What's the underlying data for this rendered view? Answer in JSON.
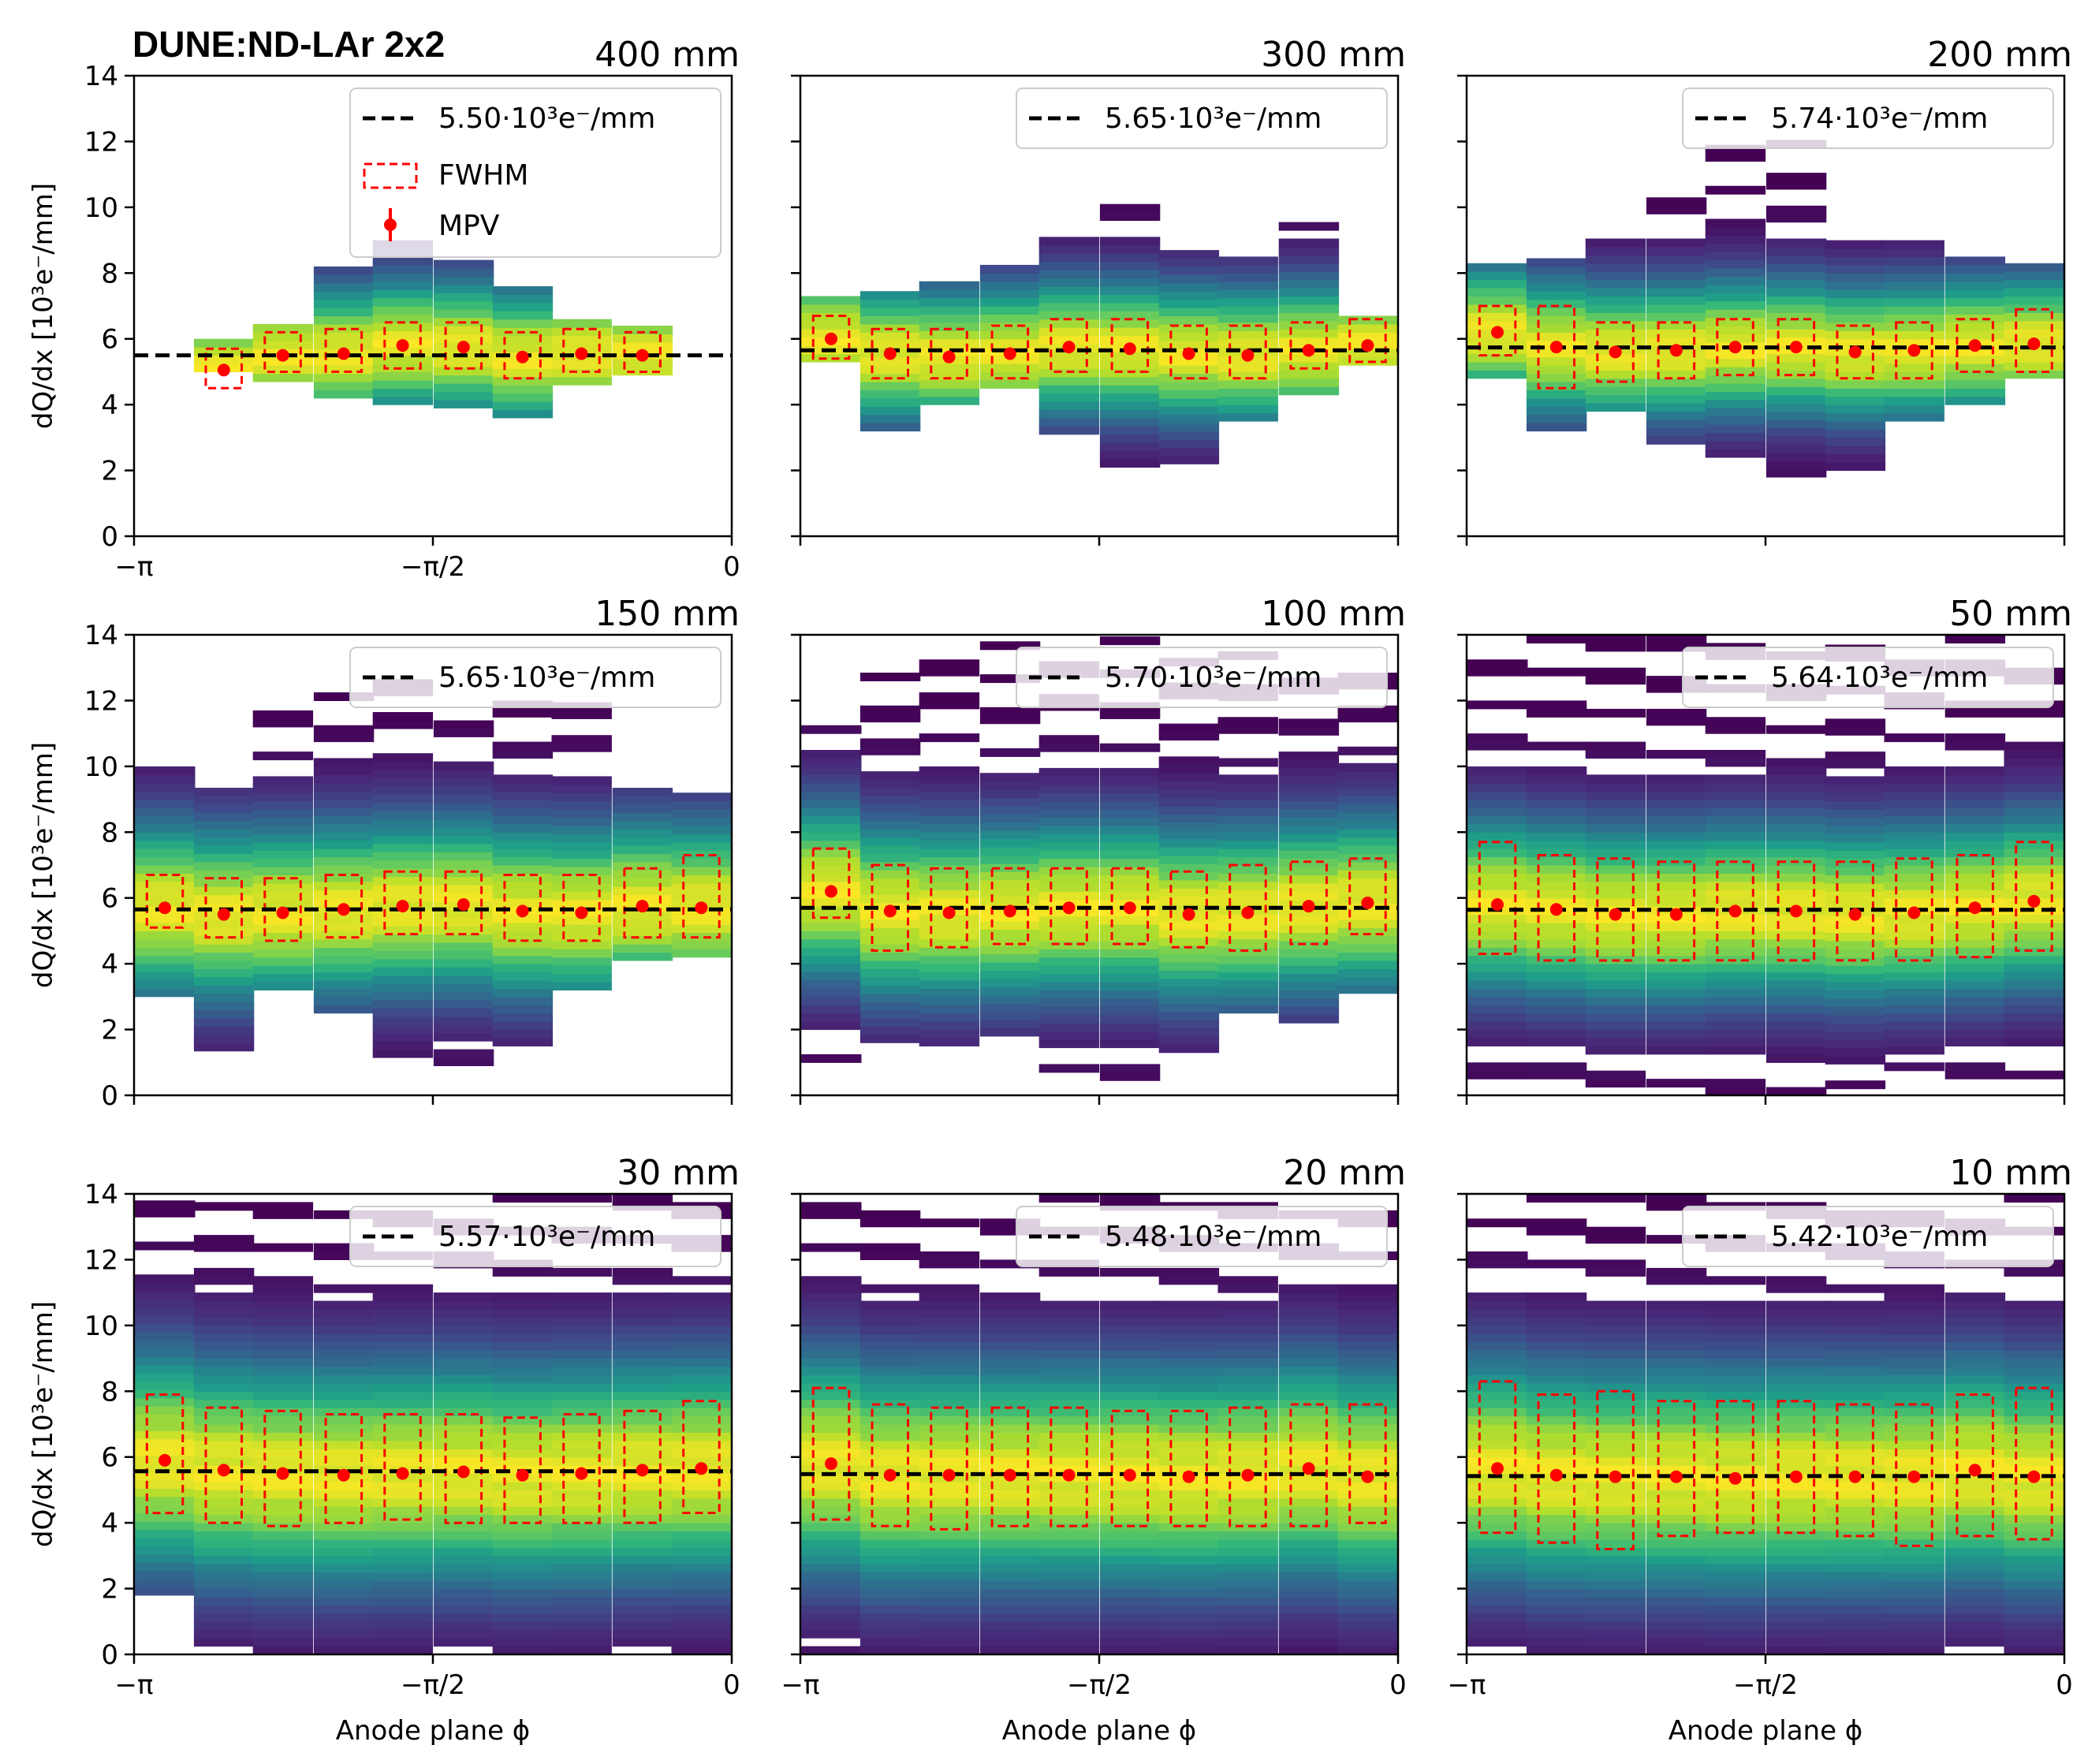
{
  "figure": {
    "experiment_label": "DUNE:ND-LAr 2x2",
    "x_axis_label": "Anode plane ϕ",
    "y_axis_label": "dQ/dx [10³e⁻/mm]",
    "legend": {
      "fit_suffix": "·10³e⁻/mm",
      "fwhm": "FWHM",
      "mpv": "MPV"
    }
  },
  "chart_data": [
    {
      "type": "heatmap",
      "title": "400 mm",
      "fit_value": "5.50",
      "xlim": [
        -3.1416,
        0
      ],
      "ylim": [
        0,
        14
      ],
      "xticks": [
        "−π",
        "−π/2",
        "0"
      ],
      "yticks": [
        "0",
        "2",
        "4",
        "6",
        "8",
        "10",
        "12",
        "14"
      ],
      "ylabel": "dQ/dx [10³e⁻/mm]",
      "xlabel": "",
      "fit_line": 5.5,
      "mpv": [
        5.05,
        5.5,
        5.55,
        5.8,
        5.75,
        5.45,
        5.55,
        5.5
      ],
      "fwhm_low": [
        4.5,
        5.0,
        5.0,
        5.1,
        5.1,
        4.8,
        5.0,
        5.0
      ],
      "fwhm_high": [
        5.7,
        6.2,
        6.3,
        6.5,
        6.5,
        6.2,
        6.3,
        6.2
      ],
      "phi_bins": [
        -2.67,
        -2.36,
        -2.04,
        -1.73,
        -1.41,
        -1.1,
        -0.79,
        -0.47
      ],
      "occupied_range": [
        [
          5.0,
          5.9
        ],
        [
          4.7,
          6.4
        ],
        [
          4.2,
          8.0
        ],
        [
          4.0,
          9.0
        ],
        [
          3.9,
          8.3
        ],
        [
          3.6,
          7.6
        ],
        [
          4.6,
          6.4
        ],
        [
          4.9,
          6.2
        ]
      ],
      "legend_loc": "top-right"
    },
    {
      "type": "heatmap",
      "title": "300 mm",
      "fit_value": "5.65",
      "xlim": [
        -3.1416,
        0
      ],
      "ylim": [
        0,
        14
      ],
      "xticks": [],
      "yticks": [],
      "ylabel": "",
      "xlabel": "",
      "fit_line": 5.65,
      "mpv": [
        6.0,
        5.55,
        5.45,
        5.55,
        5.75,
        5.7,
        5.55,
        5.5,
        5.65,
        5.8
      ],
      "fwhm_low": [
        5.4,
        4.8,
        4.8,
        4.8,
        5.0,
        5.0,
        4.8,
        4.8,
        5.1,
        5.3
      ],
      "fwhm_high": [
        6.7,
        6.3,
        6.3,
        6.4,
        6.6,
        6.6,
        6.4,
        6.4,
        6.5,
        6.6
      ],
      "phi_bins": [
        -2.98,
        -2.67,
        -2.36,
        -2.04,
        -1.73,
        -1.41,
        -1.1,
        -0.79,
        -0.47,
        -0.16
      ],
      "occupied_range": [
        [
          5.3,
          7.3
        ],
        [
          3.2,
          7.3
        ],
        [
          4.0,
          7.6
        ],
        [
          4.5,
          8.2
        ],
        [
          3.1,
          9.7
        ],
        [
          2.1,
          10.1
        ],
        [
          2.2,
          8.7
        ],
        [
          3.5,
          8.3
        ],
        [
          4.3,
          9.4
        ],
        [
          5.2,
          6.6
        ]
      ],
      "legend_loc": "top-right"
    },
    {
      "type": "heatmap",
      "title": "200 mm",
      "fit_value": "5.74",
      "xlim": [
        -3.1416,
        0
      ],
      "ylim": [
        0,
        14
      ],
      "xticks": [],
      "yticks": [],
      "ylabel": "",
      "xlabel": "",
      "fit_line": 5.74,
      "mpv": [
        6.2,
        5.75,
        5.6,
        5.65,
        5.75,
        5.75,
        5.6,
        5.65,
        5.8,
        5.85
      ],
      "fwhm_low": [
        5.5,
        4.5,
        4.7,
        4.8,
        4.9,
        4.9,
        4.8,
        4.8,
        5.0,
        5.0
      ],
      "fwhm_high": [
        7.0,
        7.0,
        6.5,
        6.5,
        6.6,
        6.6,
        6.4,
        6.5,
        6.6,
        6.9
      ],
      "phi_bins": [
        -2.98,
        -2.67,
        -2.36,
        -2.04,
        -1.73,
        -1.41,
        -1.1,
        -0.79,
        -0.47,
        -0.16
      ],
      "occupied_range": [
        [
          4.8,
          8.3
        ],
        [
          3.2,
          8.3
        ],
        [
          3.8,
          9.0
        ],
        [
          2.8,
          10.2
        ],
        [
          1.9,
          12.3
        ],
        [
          1.8,
          12.8
        ],
        [
          2.0,
          9.5
        ],
        [
          3.5,
          9.3
        ],
        [
          4.0,
          8.5
        ],
        [
          4.8,
          8.3
        ]
      ],
      "legend_loc": "top-right"
    },
    {
      "type": "heatmap",
      "title": "150 mm",
      "fit_value": "5.65",
      "xlim": [
        -3.1416,
        0
      ],
      "ylim": [
        0,
        14
      ],
      "xticks": [],
      "yticks": [
        "0",
        "2",
        "4",
        "6",
        "8",
        "10",
        "12",
        "14"
      ],
      "ylabel": "dQ/dx [10³e⁻/mm]",
      "xlabel": "",
      "fit_line": 5.65,
      "mpv": [
        5.7,
        5.5,
        5.55,
        5.65,
        5.75,
        5.8,
        5.6,
        5.55,
        5.75,
        5.7
      ],
      "fwhm_low": [
        5.1,
        4.8,
        4.7,
        4.8,
        4.9,
        4.9,
        4.7,
        4.7,
        4.8,
        4.8
      ],
      "fwhm_high": [
        6.7,
        6.6,
        6.6,
        6.7,
        6.8,
        6.8,
        6.7,
        6.7,
        6.9,
        7.3
      ],
      "phi_bins": [
        -2.98,
        -2.67,
        -2.36,
        -2.04,
        -1.73,
        -1.41,
        -1.1,
        -0.79,
        -0.47,
        -0.16
      ],
      "occupied_range": [
        [
          3.0,
          10.1
        ],
        [
          1.1,
          9.3
        ],
        [
          3.2,
          12.1
        ],
        [
          2.5,
          12.1
        ],
        [
          0.4,
          13.3
        ],
        [
          0.4,
          12.1
        ],
        [
          1.5,
          11.8
        ],
        [
          3.2,
          12.3
        ],
        [
          4.1,
          9.3
        ],
        [
          4.2,
          9.1
        ]
      ],
      "legend_loc": "top-right"
    },
    {
      "type": "heatmap",
      "title": "100 mm",
      "fit_value": "5.70",
      "xlim": [
        -3.1416,
        0
      ],
      "ylim": [
        0,
        14
      ],
      "xticks": [],
      "yticks": [],
      "ylabel": "",
      "xlabel": "",
      "fit_line": 5.7,
      "mpv": [
        6.2,
        5.6,
        5.55,
        5.6,
        5.7,
        5.7,
        5.5,
        5.55,
        5.75,
        5.85
      ],
      "fwhm_low": [
        5.4,
        4.4,
        4.5,
        4.6,
        4.6,
        4.6,
        4.5,
        4.4,
        4.6,
        4.9
      ],
      "fwhm_high": [
        7.5,
        7.0,
        6.9,
        6.9,
        6.9,
        6.9,
        6.8,
        7.0,
        7.1,
        7.2
      ],
      "phi_bins": [
        -2.98,
        -2.67,
        -2.36,
        -2.04,
        -1.73,
        -1.41,
        -1.1,
        -0.79,
        -0.47,
        -0.16
      ],
      "occupied_range": [
        [
          1.0,
          11.3
        ],
        [
          1.6,
          13.5
        ],
        [
          1.5,
          13.3
        ],
        [
          1.8,
          13.8
        ],
        [
          0.7,
          13.3
        ],
        [
          0.2,
          13.8
        ],
        [
          1.3,
          13.2
        ],
        [
          2.5,
          13.7
        ],
        [
          2.2,
          13.2
        ],
        [
          3.1,
          13.3
        ]
      ],
      "legend_loc": "top-right"
    },
    {
      "type": "heatmap",
      "title": "50 mm",
      "fit_value": "5.64",
      "xlim": [
        -3.1416,
        0
      ],
      "ylim": [
        0,
        14
      ],
      "xticks": [],
      "yticks": [],
      "ylabel": "",
      "xlabel": "",
      "fit_line": 5.64,
      "mpv": [
        5.8,
        5.65,
        5.5,
        5.5,
        5.6,
        5.6,
        5.5,
        5.55,
        5.7,
        5.9
      ],
      "fwhm_low": [
        4.3,
        4.1,
        4.1,
        4.1,
        4.1,
        4.1,
        4.1,
        4.1,
        4.2,
        4.4
      ],
      "fwhm_high": [
        7.7,
        7.3,
        7.2,
        7.1,
        7.1,
        7.1,
        7.1,
        7.2,
        7.3,
        7.7
      ],
      "phi_bins": [
        -2.98,
        -2.67,
        -2.36,
        -2.04,
        -1.73,
        -1.41,
        -1.1,
        -0.79,
        -0.47,
        -0.16
      ],
      "occupied_range": [
        [
          0.5,
          14.0
        ],
        [
          0.5,
          14.0
        ],
        [
          0.0,
          14.0
        ],
        [
          0.0,
          14.0
        ],
        [
          0.0,
          14.0
        ],
        [
          0.0,
          14.0
        ],
        [
          0.2,
          14.0
        ],
        [
          0.5,
          14.0
        ],
        [
          0.5,
          14.0
        ],
        [
          0.5,
          13.0
        ]
      ],
      "legend_loc": "top-right"
    },
    {
      "type": "heatmap",
      "title": "30 mm",
      "fit_value": "5.57",
      "xlim": [
        -3.1416,
        0
      ],
      "ylim": [
        0,
        14
      ],
      "xticks": [
        "−π",
        "−π/2",
        "0"
      ],
      "yticks": [
        "0",
        "2",
        "4",
        "6",
        "8",
        "10",
        "12",
        "14"
      ],
      "ylabel": "dQ/dx [10³e⁻/mm]",
      "xlabel": "Anode plane ϕ",
      "fit_line": 5.57,
      "mpv": [
        5.9,
        5.6,
        5.5,
        5.45,
        5.5,
        5.55,
        5.45,
        5.5,
        5.6,
        5.65
      ],
      "fwhm_low": [
        4.3,
        4.0,
        3.9,
        4.0,
        4.1,
        4.0,
        4.0,
        4.0,
        4.0,
        4.3
      ],
      "fwhm_high": [
        7.9,
        7.5,
        7.4,
        7.3,
        7.3,
        7.3,
        7.2,
        7.3,
        7.4,
        7.7
      ],
      "phi_bins": [
        -2.98,
        -2.67,
        -2.36,
        -2.04,
        -1.73,
        -1.41,
        -1.1,
        -0.79,
        -0.47,
        -0.16
      ],
      "occupied_range": [
        [
          1.8,
          14.0
        ],
        [
          0.0,
          14.0
        ],
        [
          0.0,
          14.0
        ],
        [
          0.0,
          14.0
        ],
        [
          0.0,
          14.0
        ],
        [
          0.0,
          14.0
        ],
        [
          0.0,
          14.0
        ],
        [
          0.0,
          14.0
        ],
        [
          0.0,
          14.0
        ],
        [
          0.0,
          14.0
        ]
      ],
      "legend_loc": "top-right"
    },
    {
      "type": "heatmap",
      "title": "20 mm",
      "fit_value": "5.48",
      "xlim": [
        -3.1416,
        0
      ],
      "ylim": [
        0,
        14
      ],
      "xticks": [
        "−π",
        "−π/2",
        "0"
      ],
      "yticks": [],
      "ylabel": "",
      "xlabel": "Anode plane ϕ",
      "fit_line": 5.48,
      "mpv": [
        5.8,
        5.45,
        5.45,
        5.45,
        5.45,
        5.45,
        5.4,
        5.45,
        5.65,
        5.4
      ],
      "fwhm_low": [
        4.1,
        3.9,
        3.8,
        3.9,
        3.9,
        3.9,
        3.9,
        3.9,
        3.9,
        4.0
      ],
      "fwhm_high": [
        8.1,
        7.6,
        7.5,
        7.5,
        7.5,
        7.4,
        7.4,
        7.5,
        7.6,
        7.6
      ],
      "phi_bins": [
        -2.98,
        -2.67,
        -2.36,
        -2.04,
        -1.73,
        -1.41,
        -1.1,
        -0.79,
        -0.47,
        -0.16
      ],
      "occupied_range": [
        [
          0.0,
          14.0
        ],
        [
          0.0,
          14.0
        ],
        [
          0.0,
          14.0
        ],
        [
          0.0,
          14.0
        ],
        [
          0.0,
          14.0
        ],
        [
          0.0,
          14.0
        ],
        [
          0.0,
          14.0
        ],
        [
          0.0,
          14.0
        ],
        [
          0.0,
          14.0
        ],
        [
          0.0,
          14.0
        ]
      ],
      "legend_loc": "top-right"
    },
    {
      "type": "heatmap",
      "title": "10 mm",
      "fit_value": "5.42",
      "xlim": [
        -3.1416,
        0
      ],
      "ylim": [
        0,
        14
      ],
      "xticks": [
        "−π",
        "−π/2",
        "0"
      ],
      "yticks": [],
      "ylabel": "",
      "xlabel": "Anode plane ϕ",
      "fit_line": 5.42,
      "mpv": [
        5.65,
        5.45,
        5.4,
        5.4,
        5.35,
        5.4,
        5.4,
        5.4,
        5.6,
        5.4
      ],
      "fwhm_low": [
        3.7,
        3.4,
        3.2,
        3.6,
        3.7,
        3.7,
        3.6,
        3.3,
        3.6,
        3.5
      ],
      "fwhm_high": [
        8.3,
        7.9,
        8.0,
        7.7,
        7.7,
        7.7,
        7.6,
        7.6,
        7.9,
        8.1
      ],
      "phi_bins": [
        -2.98,
        -2.67,
        -2.36,
        -2.04,
        -1.73,
        -1.41,
        -1.1,
        -0.79,
        -0.47,
        -0.16
      ],
      "occupied_range": [
        [
          0.0,
          14.0
        ],
        [
          0.0,
          14.0
        ],
        [
          0.0,
          14.0
        ],
        [
          0.0,
          14.0
        ],
        [
          0.0,
          14.0
        ],
        [
          0.0,
          14.0
        ],
        [
          0.0,
          14.0
        ],
        [
          0.0,
          14.0
        ],
        [
          0.0,
          14.0
        ],
        [
          0.0,
          14.0
        ]
      ],
      "legend_loc": "top-right"
    }
  ]
}
